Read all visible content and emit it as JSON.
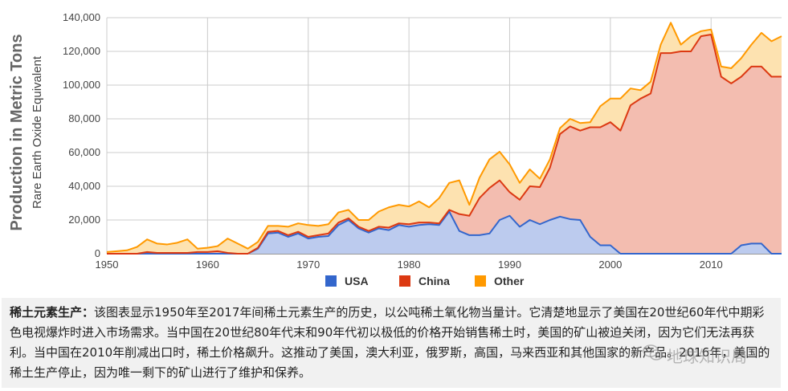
{
  "chart_data": {
    "type": "area",
    "stacked": true,
    "ylabel": "Production in Metric Tons",
    "ylabel_sub": "Rare Earth Oxide Equivalent",
    "xlabel": "",
    "xlim": [
      1950,
      2017
    ],
    "ylim": [
      0,
      140000
    ],
    "x_ticks": [
      1950,
      1960,
      1970,
      1980,
      1990,
      2000,
      2010
    ],
    "y_ticks": [
      0,
      20000,
      40000,
      60000,
      80000,
      100000,
      120000,
      140000
    ],
    "y_tick_labels": [
      "0",
      "20,000",
      "40,000",
      "60,000",
      "80,000",
      "100,000",
      "120,000",
      "140,000"
    ],
    "grid": true,
    "legend_position": "bottom",
    "x": [
      1950,
      1951,
      1952,
      1953,
      1954,
      1955,
      1956,
      1957,
      1958,
      1959,
      1960,
      1961,
      1962,
      1963,
      1964,
      1965,
      1966,
      1967,
      1968,
      1969,
      1970,
      1971,
      1972,
      1973,
      1974,
      1975,
      1976,
      1977,
      1978,
      1979,
      1980,
      1981,
      1982,
      1983,
      1984,
      1985,
      1986,
      1987,
      1988,
      1989,
      1990,
      1991,
      1992,
      1993,
      1994,
      1995,
      1996,
      1997,
      1998,
      1999,
      2000,
      2001,
      2002,
      2003,
      2004,
      2005,
      2006,
      2007,
      2008,
      2009,
      2010,
      2011,
      2012,
      2013,
      2014,
      2015,
      2016,
      2017
    ],
    "series": [
      {
        "name": "USA",
        "color": "#3366cc",
        "fill": "#bccbee",
        "values": [
          0,
          0,
          0,
          0,
          0,
          0,
          0,
          0,
          0,
          0,
          0,
          0,
          0,
          0,
          0,
          3000,
          12000,
          12500,
          10000,
          12000,
          9000,
          10000,
          10500,
          17000,
          20000,
          15000,
          12500,
          15000,
          14000,
          17000,
          16000,
          17000,
          17500,
          17000,
          25000,
          13500,
          11000,
          11000,
          12000,
          20000,
          22500,
          16000,
          20000,
          17500,
          20000,
          22000,
          20500,
          20000,
          10000,
          5000,
          5000,
          0,
          0,
          0,
          0,
          0,
          0,
          0,
          0,
          0,
          0,
          0,
          0,
          5000,
          6000,
          6000,
          0,
          0
        ]
      },
      {
        "name": "China",
        "color": "#dc3912",
        "fill": "#f3bdb0",
        "values": [
          0,
          0,
          0,
          0,
          1000,
          500,
          500,
          500,
          500,
          1000,
          1000,
          1500,
          500,
          0,
          0,
          500,
          1000,
          1000,
          1000,
          1000,
          1000,
          1000,
          1500,
          1500,
          1000,
          1000,
          1000,
          1000,
          1500,
          1000,
          1500,
          1500,
          1000,
          1000,
          1000,
          10000,
          11500,
          22000,
          27000,
          23500,
          14000,
          16000,
          20000,
          22000,
          31000,
          49000,
          55000,
          53000,
          65000,
          70000,
          73000,
          73000,
          88000,
          92000,
          95000,
          119000,
          119000,
          120000,
          120000,
          129000,
          130000,
          105000,
          101000,
          100000,
          105000,
          105000,
          105000,
          105000
        ]
      },
      {
        "name": "Other",
        "color": "#ff9900",
        "fill": "#fde2b0",
        "values": [
          1000,
          1500,
          2000,
          4000,
          7500,
          5500,
          5000,
          6000,
          8000,
          2000,
          2500,
          3000,
          8500,
          6000,
          3000,
          3500,
          3500,
          3000,
          5000,
          5000,
          7000,
          5500,
          5500,
          6000,
          5000,
          4000,
          6500,
          9000,
          12000,
          11000,
          10500,
          12500,
          9000,
          15000,
          16000,
          20000,
          6500,
          12000,
          17000,
          17000,
          16500,
          10000,
          10000,
          5000,
          5000,
          3500,
          4500,
          4500,
          3000,
          12500,
          14000,
          19000,
          10000,
          5000,
          7000,
          5000,
          18000,
          4000,
          9000,
          3000,
          3000,
          6000,
          9000,
          11000,
          13000,
          20000,
          21000,
          24000
        ]
      }
    ]
  },
  "caption": {
    "lead": "稀土元素生产：",
    "body": "该图表显示1950年至2017年间稀土元素生产的历史，以公吨稀土氧化物当量计。它清楚地显示了美国在20世纪60年代中期彩色电视爆炸时进入市场需求。当中国在20世纪80年代末和90年代初以极低的价格开始销售稀土时，美国的矿山被迫关闭，因为它们无法再获利。当中国在2010年削减出口时，稀土价格飙升。这推动了美国，澳大利亚，俄罗斯，高国，马来西亚和其他国家的新产品。2016年，美国的稀土生产停止，因为唯一剩下的矿山进行了维护和保养。"
  },
  "watermark": "地球知识局"
}
